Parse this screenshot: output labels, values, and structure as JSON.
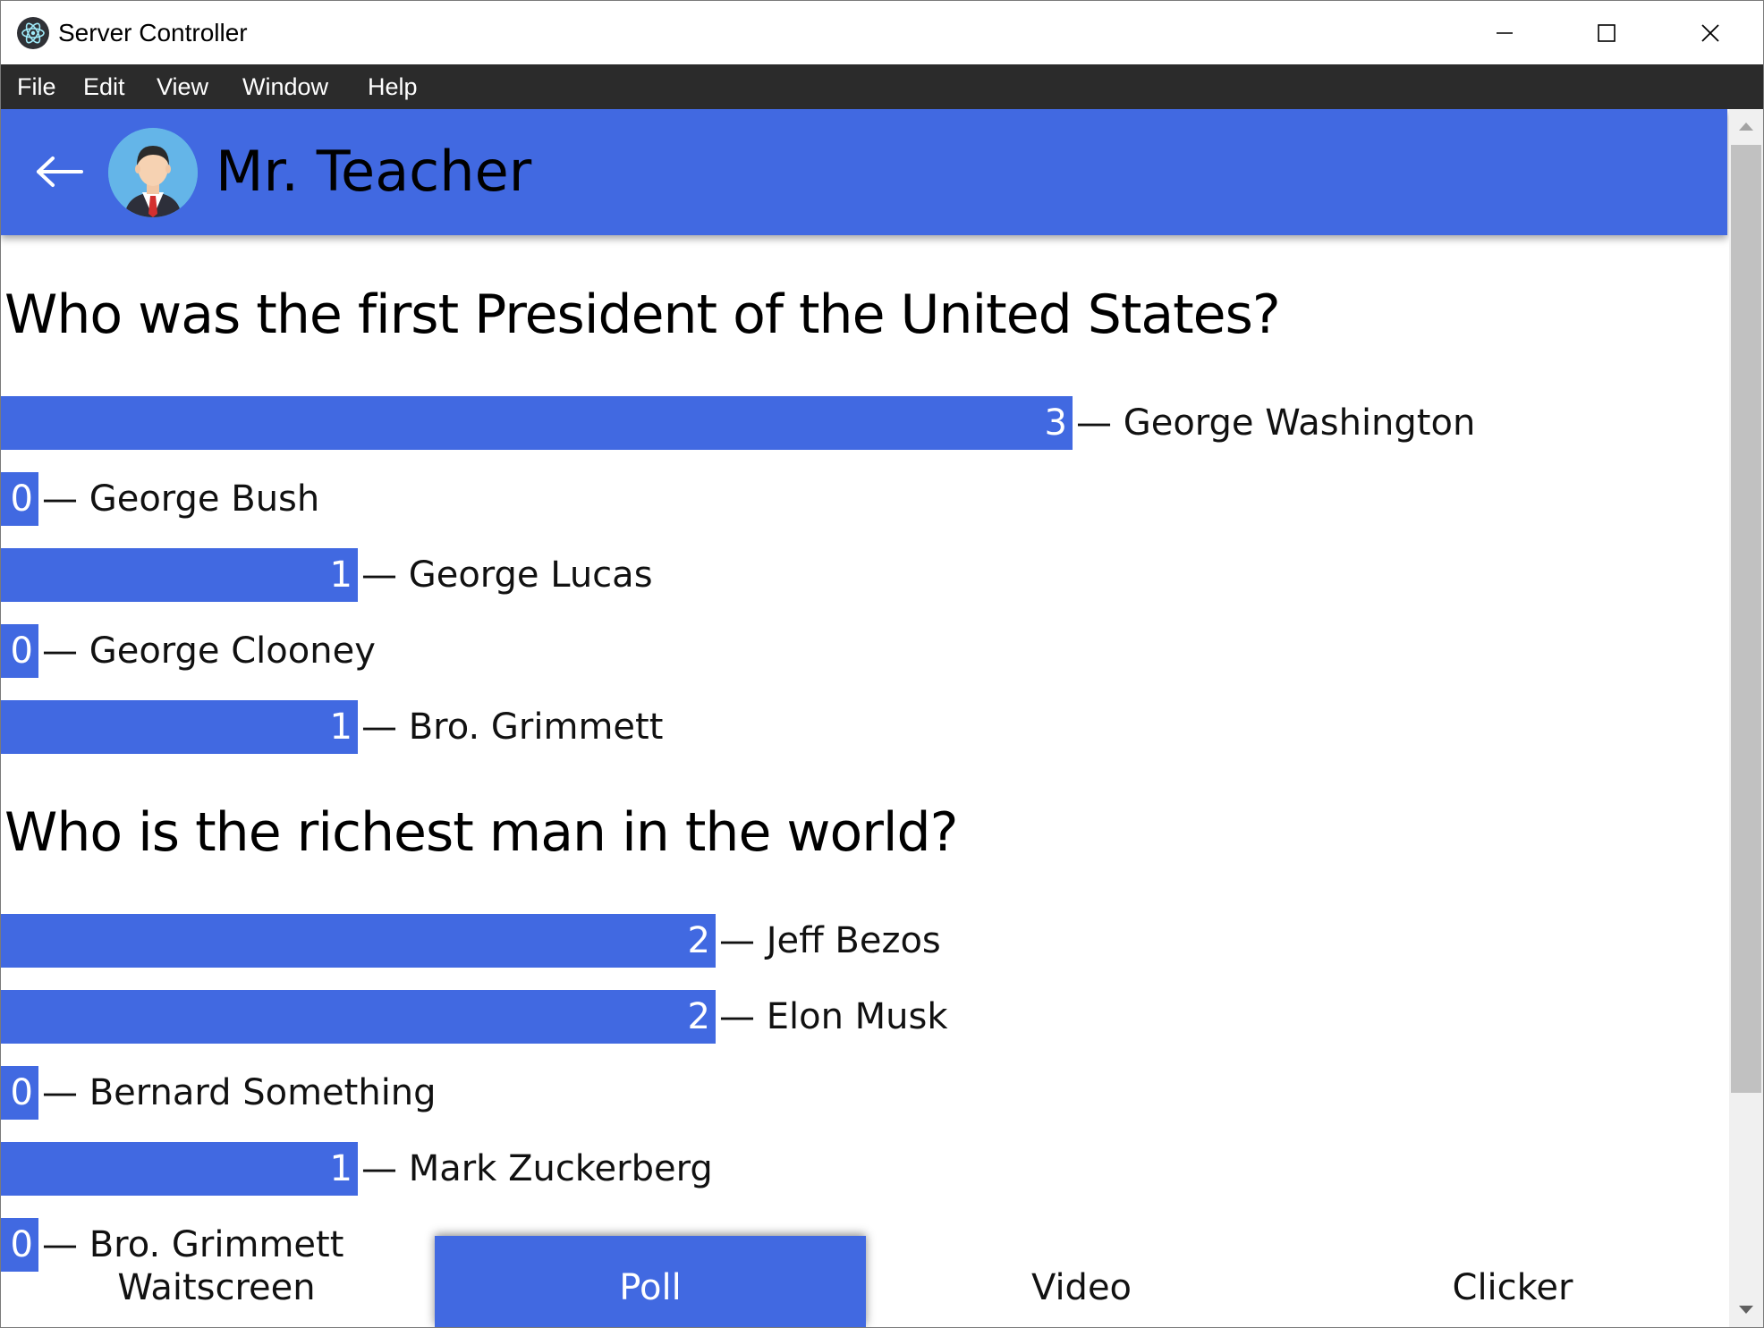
{
  "window": {
    "title": "Server Controller",
    "controls": [
      "minimize",
      "maximize",
      "close"
    ]
  },
  "menubar": {
    "items": [
      "File",
      "Edit",
      "View",
      "Window",
      "Help"
    ]
  },
  "header": {
    "user_name": "Mr. Teacher",
    "back_icon": "back-arrow-icon",
    "avatar_icon": "teacher-avatar"
  },
  "colors": {
    "accent": "#4169e1",
    "menubar": "#2b2b2b",
    "scrollbar_thumb": "#c1c1c1"
  },
  "polls": [
    {
      "question": "Who was the first President of the United States?",
      "max_votes": 3,
      "answers": [
        {
          "count": "3",
          "votes": 3,
          "label": "— George Washington"
        },
        {
          "count": "0",
          "votes": 0,
          "label": "— George Bush"
        },
        {
          "count": "1",
          "votes": 1,
          "label": "— George Lucas"
        },
        {
          "count": "0",
          "votes": 0,
          "label": "— George Clooney"
        },
        {
          "count": "1",
          "votes": 1,
          "label": "— Bro. Grimmett"
        }
      ]
    },
    {
      "question": "Who is the richest man in the world?",
      "max_votes": 3,
      "answers": [
        {
          "count": "2",
          "votes": 2,
          "label": "— Jeff Bezos"
        },
        {
          "count": "2",
          "votes": 2,
          "label": "— Elon Musk"
        },
        {
          "count": "0",
          "votes": 0,
          "label": "— Bernard Something"
        },
        {
          "count": "1",
          "votes": 1,
          "label": "— Mark Zuckerberg"
        },
        {
          "count": "0",
          "votes": 0,
          "label": "— Bro. Grimmett"
        }
      ]
    }
  ],
  "bottom_nav": {
    "tabs": [
      "Waitscreen",
      "Poll",
      "Video",
      "Clicker"
    ],
    "active": "Poll"
  }
}
